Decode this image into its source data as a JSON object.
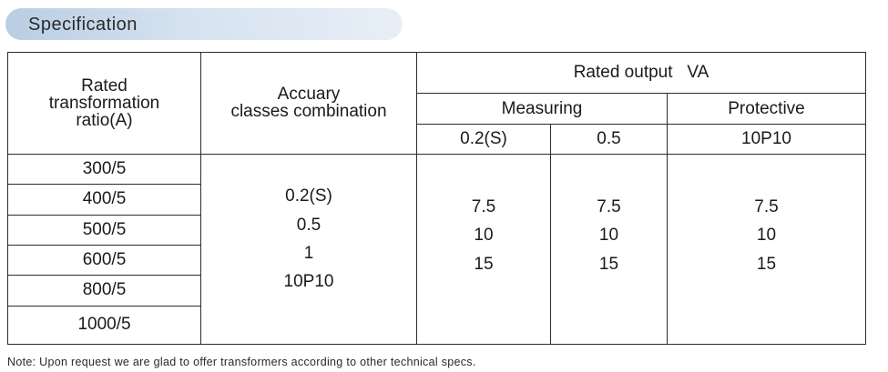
{
  "section_title": "Specification",
  "table": {
    "headers": {
      "ratio_line1": "Rated",
      "ratio_line2": "transformation",
      "ratio_line3": "ratio(A)",
      "classes_line1": "Accuary",
      "classes_line2": "classes combination",
      "rated_output": "Rated output   VA",
      "measuring": "Measuring",
      "protective": "Protective",
      "col_02s": "0.2(S)",
      "col_05": "0.5",
      "col_10p10": "10P10"
    },
    "ratios": [
      "300/5",
      "400/5",
      "500/5",
      "600/5",
      "800/5",
      "1000/5"
    ],
    "classes": [
      "0.2(S)",
      "0.5",
      "1",
      "10P10"
    ],
    "measuring_02s": [
      "7.5",
      "10",
      "15"
    ],
    "measuring_05": [
      "7.5",
      "10",
      "15"
    ],
    "protective_10p10": [
      "7.5",
      "10",
      "15"
    ]
  },
  "note": "Note: Upon request we are glad to offer transformers according to other technical specs."
}
